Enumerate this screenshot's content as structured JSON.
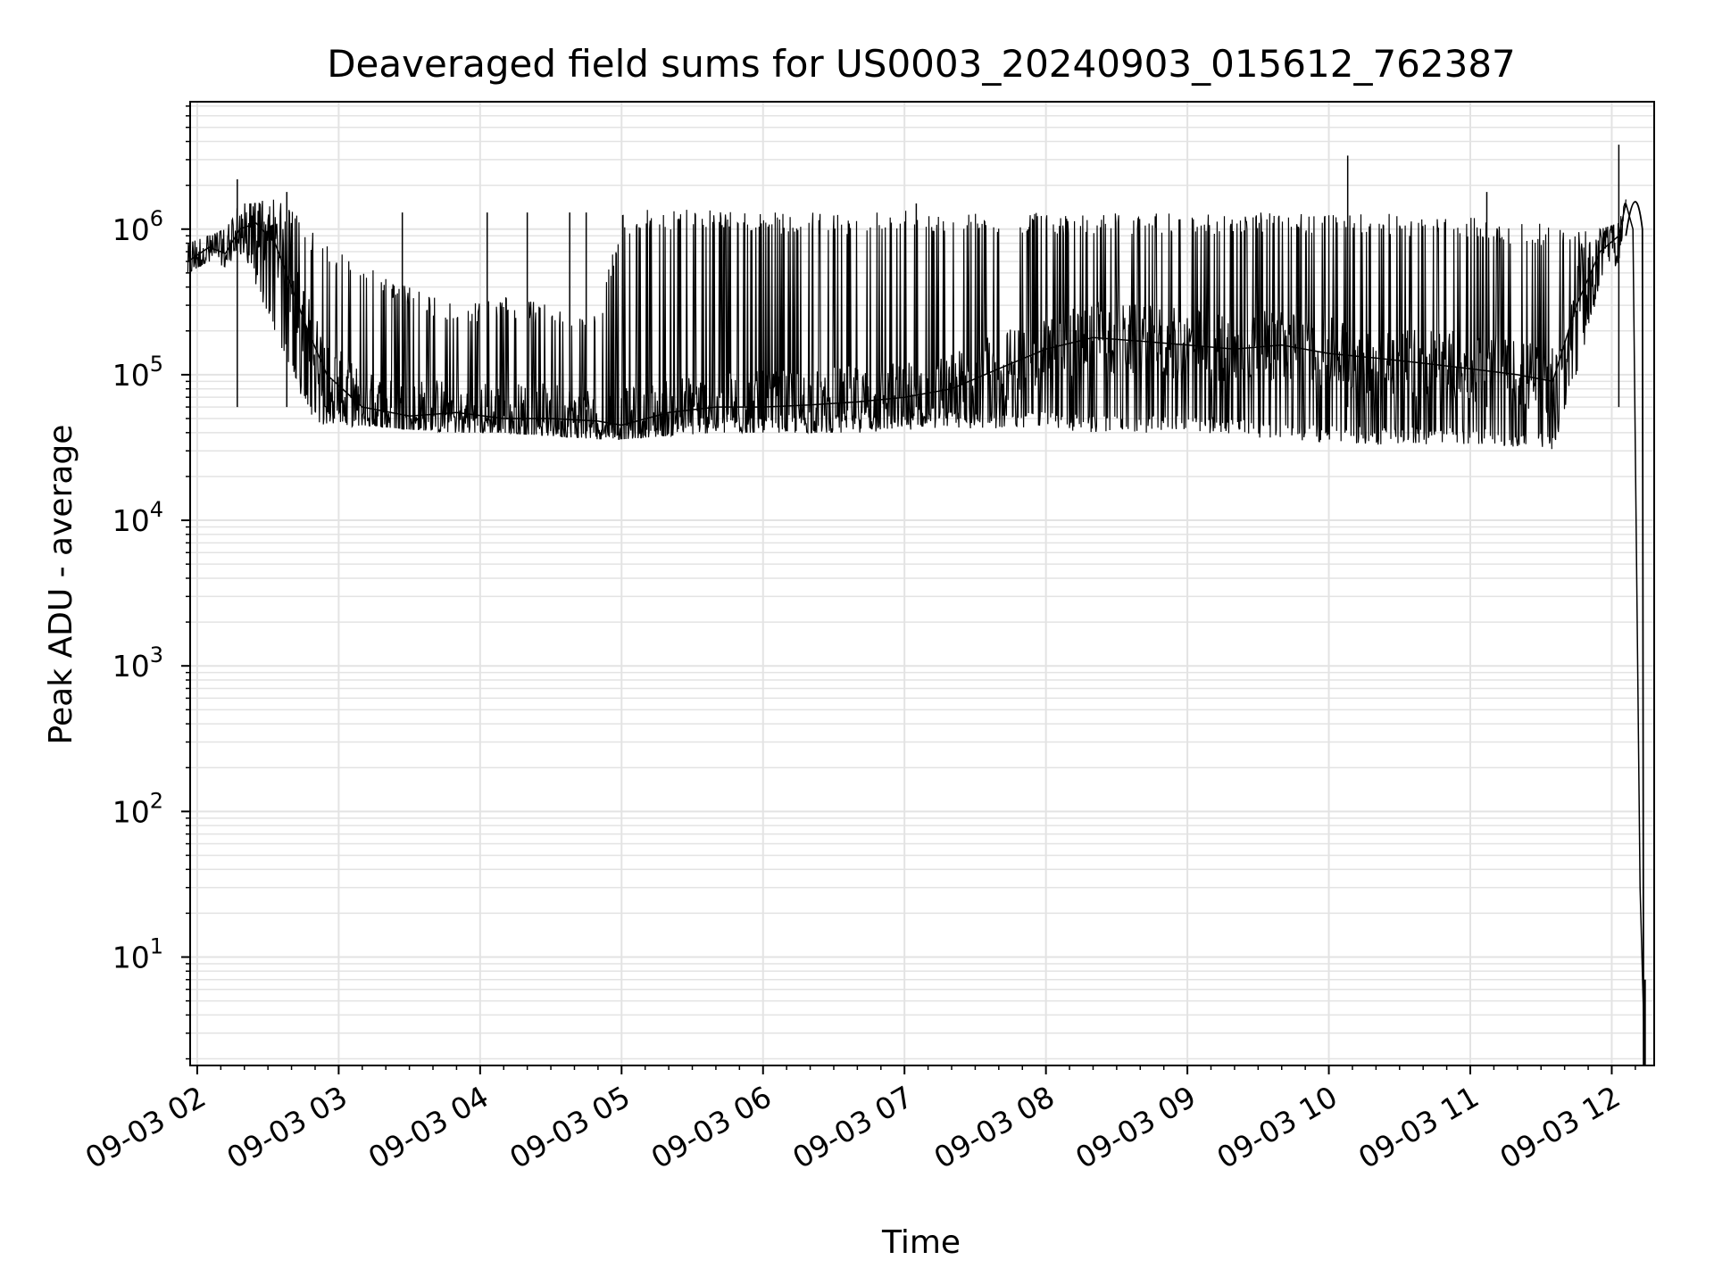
{
  "chart_data": {
    "type": "line",
    "title": "Deaveraged field sums for US0003_20240903_015612_762387",
    "xlabel": "Time",
    "ylabel": "Peak ADU - average",
    "y_scale": "log",
    "grid": true,
    "grid_minor": true,
    "line_color": "#000000",
    "grid_color": "#e3e3e3",
    "x_tick_labels": [
      "09-03 02",
      "09-03 03",
      "09-03 04",
      "09-03 05",
      "09-03 06",
      "09-03 07",
      "09-03 08",
      "09-03 09",
      "09-03 10",
      "09-03 11",
      "09-03 12"
    ],
    "x_tick_values": [
      "2024-09-03 02:00",
      "2024-09-03 03:00",
      "2024-09-03 04:00",
      "2024-09-03 05:00",
      "2024-09-03 06:00",
      "2024-09-03 07:00",
      "2024-09-03 08:00",
      "2024-09-03 09:00",
      "2024-09-03 10:00",
      "2024-09-03 11:00",
      "2024-09-03 12:00"
    ],
    "y_tick_labels": [
      {
        "base": "10",
        "exp": "1",
        "value": 10
      },
      {
        "base": "10",
        "exp": "2",
        "value": 100
      },
      {
        "base": "10",
        "exp": "3",
        "value": 1000
      },
      {
        "base": "10",
        "exp": "4",
        "value": 10000
      },
      {
        "base": "10",
        "exp": "5",
        "value": 100000
      },
      {
        "base": "10",
        "exp": "6",
        "value": 1000000
      }
    ],
    "xlim": [
      "2024-09-03 01:57",
      "2024-09-03 12:18"
    ],
    "ylim": [
      1.8,
      7500000
    ],
    "x": [
      "2024-09-03 01:56",
      "2024-09-03 02:05",
      "2024-09-03 02:12",
      "2024-09-03 02:18",
      "2024-09-03 02:25",
      "2024-09-03 02:33",
      "2024-09-03 02:40",
      "2024-09-03 02:47",
      "2024-09-03 02:55",
      "2024-09-03 03:10",
      "2024-09-03 03:30",
      "2024-09-03 03:50",
      "2024-09-03 04:10",
      "2024-09-03 04:30",
      "2024-09-03 04:50",
      "2024-09-03 05:00",
      "2024-09-03 05:20",
      "2024-09-03 05:40",
      "2024-09-03 06:00",
      "2024-09-03 06:20",
      "2024-09-03 06:40",
      "2024-09-03 07:00",
      "2024-09-03 07:20",
      "2024-09-03 07:40",
      "2024-09-03 08:00",
      "2024-09-03 08:20",
      "2024-09-03 08:40",
      "2024-09-03 09:00",
      "2024-09-03 09:20",
      "2024-09-03 09:40",
      "2024-09-03 10:00",
      "2024-09-03 10:20",
      "2024-09-03 10:40",
      "2024-09-03 11:00",
      "2024-09-03 11:20",
      "2024-09-03 11:35",
      "2024-09-03 11:45",
      "2024-09-03 11:55",
      "2024-09-03 12:03",
      "2024-09-03 12:06",
      "2024-09-03 12:09",
      "2024-09-03 12:12",
      "2024-09-03 12:14"
    ],
    "y": [
      600000,
      750000,
      680000,
      1000000,
      1100000,
      800000,
      400000,
      200000,
      100000,
      60000,
      52000,
      55000,
      50000,
      50000,
      48000,
      45000,
      55000,
      60000,
      60000,
      62000,
      65000,
      70000,
      80000,
      110000,
      150000,
      180000,
      170000,
      160000,
      150000,
      160000,
      140000,
      130000,
      120000,
      110000,
      100000,
      90000,
      300000,
      700000,
      900000,
      1500000,
      1000000,
      30,
      2
    ],
    "envelope_max": [
      800000,
      900000,
      1000000,
      1500000,
      1500000,
      1700000,
      1400000,
      1000000,
      800000,
      600000,
      400000,
      300000,
      350000,
      300000,
      250000,
      1300000,
      1400000,
      1400000,
      1300000,
      1300000,
      1300000,
      1400000,
      1300000,
      1300000,
      1300000,
      1300000,
      1300000,
      1300000,
      1300000,
      1300000,
      1300000,
      1300000,
      1200000,
      1200000,
      1100000,
      1100000,
      1000000,
      1000000,
      1100000,
      1600000,
      1200000,
      30,
      2
    ],
    "envelope_min": [
      500000,
      600000,
      550000,
      700000,
      400000,
      200000,
      100000,
      55000,
      42000,
      45000,
      42000,
      40000,
      40000,
      38000,
      36000,
      36000,
      38000,
      40000,
      40000,
      40000,
      40000,
      42000,
      42000,
      42000,
      42000,
      40000,
      40000,
      40000,
      38000,
      36000,
      34000,
      33000,
      33000,
      33000,
      32000,
      30000,
      100000,
      400000,
      600000,
      1400000,
      800000,
      20,
      2
    ],
    "spikes": [
      {
        "x": "2024-09-03 02:17",
        "y": 2200000
      },
      {
        "x": "2024-09-03 02:38",
        "y": 1800000
      },
      {
        "x": "2024-09-03 03:27",
        "y": 1300000
      },
      {
        "x": "2024-09-03 04:03",
        "y": 1300000
      },
      {
        "x": "2024-09-03 04:20",
        "y": 1300000
      },
      {
        "x": "2024-09-03 04:38",
        "y": 1300000
      },
      {
        "x": "2024-09-03 04:45",
        "y": 1300000
      },
      {
        "x": "2024-09-03 07:05",
        "y": 1500000
      },
      {
        "x": "2024-09-03 10:08",
        "y": 3200000
      },
      {
        "x": "2024-09-03 11:07",
        "y": 1800000
      },
      {
        "x": "2024-09-03 12:03",
        "y": 3800000
      }
    ]
  }
}
